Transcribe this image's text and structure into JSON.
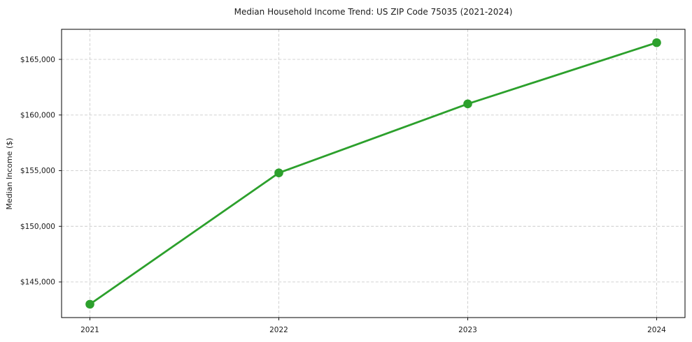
{
  "chart_data": {
    "type": "line",
    "title": "Median Household Income Trend: US ZIP Code 75035 (2021-2024)",
    "xlabel": "",
    "ylabel": "Median Income ($)",
    "x": [
      2021,
      2022,
      2023,
      2024
    ],
    "xtick_labels": [
      "2021",
      "2022",
      "2023",
      "2024"
    ],
    "values": [
      143000,
      154800,
      161000,
      166500
    ],
    "yticks": [
      145000,
      150000,
      155000,
      160000,
      165000
    ],
    "ytick_labels": [
      "$145,000",
      "$150,000",
      "$155,000",
      "$160,000",
      "$165,000"
    ],
    "xlim": [
      2020.85,
      2024.15
    ],
    "ylim": [
      141800,
      167700
    ],
    "grid": true,
    "grid_style": "dashed",
    "legend_position": "none",
    "marker": "circle",
    "colors": {
      "line": "#2ca02c",
      "marker": "#2ca02c",
      "grid": "#cccccc",
      "axis": "#000000",
      "text": "#1a1a1a",
      "background": "#ffffff"
    }
  }
}
